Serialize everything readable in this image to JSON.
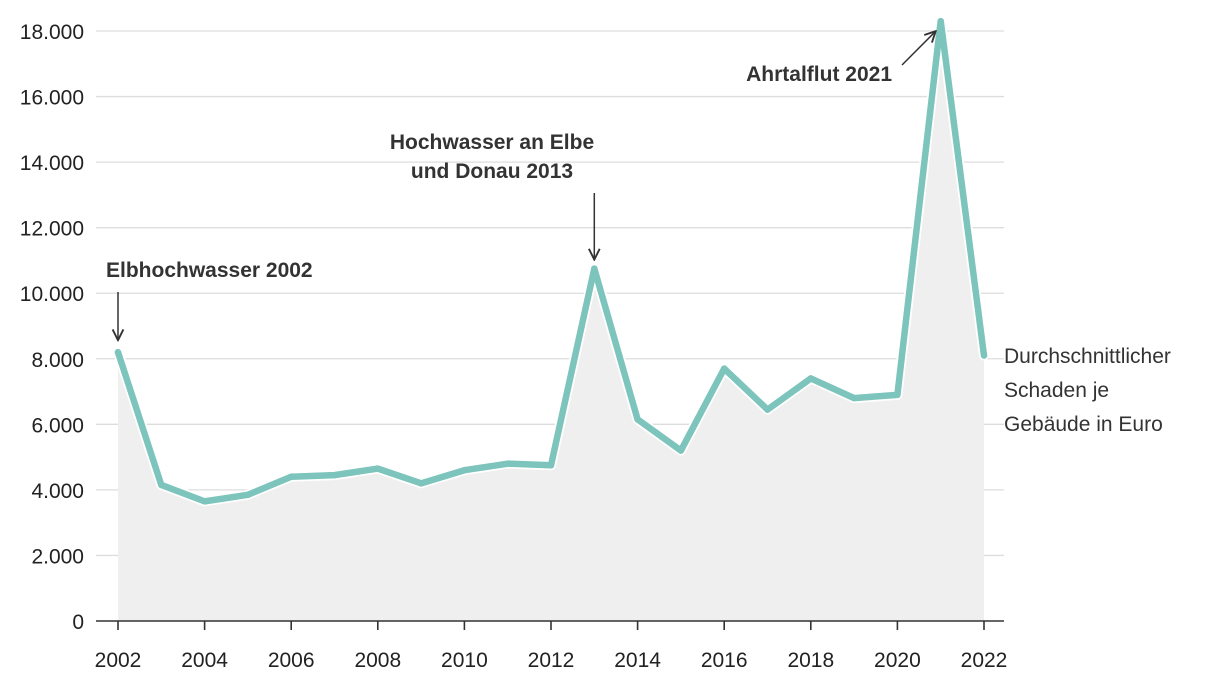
{
  "chart_data": {
    "type": "area",
    "title": "",
    "xlabel": "",
    "ylabel": "",
    "x": [
      2002,
      2003,
      2004,
      2005,
      2006,
      2007,
      2008,
      2009,
      2010,
      2011,
      2012,
      2013,
      2014,
      2015,
      2016,
      2017,
      2018,
      2019,
      2020,
      2021,
      2022
    ],
    "series": [
      {
        "name": "Durchschnittlicher Schaden je Gebäude in Euro",
        "values": [
          8200,
          4150,
          3650,
          3850,
          4400,
          4450,
          4650,
          4200,
          4600,
          4800,
          4750,
          10750,
          6150,
          5200,
          7700,
          6450,
          7400,
          6800,
          6900,
          18300,
          8100
        ]
      }
    ],
    "series_label_lines": [
      "Durchschnittlicher",
      "Schaden je",
      "Gebäude in Euro"
    ],
    "ylim": [
      0,
      18000
    ],
    "yticks": [
      0,
      2000,
      4000,
      6000,
      8000,
      10000,
      12000,
      14000,
      16000,
      18000
    ],
    "ytick_labels": [
      "0",
      "2.000",
      "4.000",
      "6.000",
      "8.000",
      "10.000",
      "12.000",
      "14.000",
      "16.000",
      "18.000"
    ],
    "xticks": [
      2002,
      2004,
      2006,
      2008,
      2010,
      2012,
      2014,
      2016,
      2018,
      2020,
      2022
    ],
    "xtick_labels": [
      "2002",
      "2004",
      "2006",
      "2008",
      "2010",
      "2012",
      "2014",
      "2016",
      "2018",
      "2020",
      "2022"
    ],
    "annotations": [
      {
        "year": 2002,
        "lines": [
          "Elbhochwasser 2002"
        ]
      },
      {
        "year": 2013,
        "lines": [
          "Hochwasser an Elbe",
          "und Donau 2013"
        ]
      },
      {
        "year": 2021,
        "lines": [
          "Ahrtalflut 2021"
        ]
      }
    ],
    "grid": true,
    "colors": {
      "line": "#7cc4bc",
      "area": "#efefef",
      "grid": "#dddddd",
      "axis": "#333333"
    }
  }
}
